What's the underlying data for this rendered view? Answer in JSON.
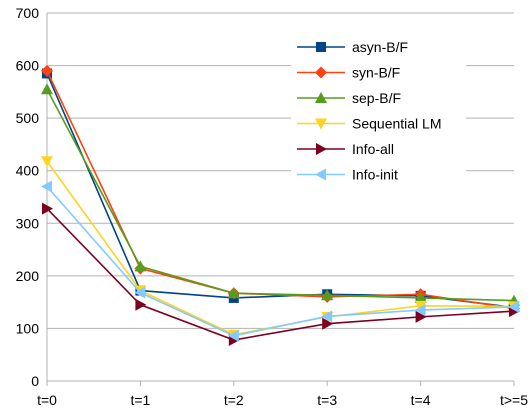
{
  "chart_data": {
    "type": "line",
    "title": "",
    "xlabel": "",
    "ylabel": "",
    "ylim": [
      0,
      700
    ],
    "yticks": [
      0,
      100,
      200,
      300,
      400,
      500,
      600,
      700
    ],
    "grid": "horizontal",
    "legend_position": "right",
    "categories": [
      "t=0",
      "t=1",
      "t=2",
      "t=3",
      "t=4",
      "t>=5"
    ],
    "series": [
      {
        "name": "asyn-B/F",
        "color": "#004586",
        "marker": "square",
        "values": [
          585,
          172,
          158,
          165,
          162,
          140
        ]
      },
      {
        "name": "syn-B/F",
        "color": "#ff420e",
        "marker": "diamond",
        "values": [
          590,
          214,
          167,
          160,
          165,
          138
        ]
      },
      {
        "name": "sep-B/F",
        "color": "#579d1c",
        "marker": "triangle-up",
        "values": [
          555,
          218,
          167,
          163,
          158,
          153
        ]
      },
      {
        "name": "Sequential LM",
        "color": "#ffd320",
        "marker": "triangle-down",
        "values": [
          418,
          172,
          88,
          122,
          143,
          142
        ]
      },
      {
        "name": "Info-all",
        "color": "#7e0021",
        "marker": "triangle-right",
        "values": [
          328,
          145,
          78,
          109,
          122,
          133
        ]
      },
      {
        "name": "Info-init",
        "color": "#83caff",
        "marker": "triangle-left",
        "values": [
          370,
          168,
          86,
          123,
          135,
          141
        ]
      }
    ]
  }
}
